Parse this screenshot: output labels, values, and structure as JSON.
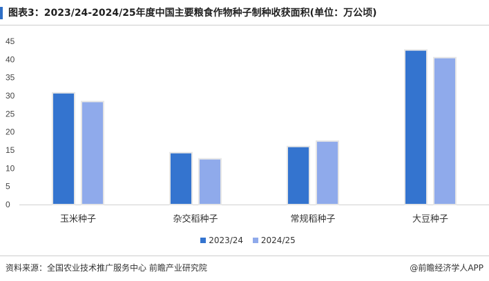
{
  "chart_data": {
    "type": "bar",
    "title": "图表3：2023/24-2024/25年度中国主要粮食作物种子制种收获面积(单位：万公顷)",
    "categories": [
      "玉米种子",
      "杂交稻种子",
      "常规稻种子",
      "大豆种子"
    ],
    "series": [
      {
        "name": "2023/24",
        "color": "#3474cf",
        "values": [
          30.8,
          14.3,
          16.0,
          42.6
        ]
      },
      {
        "name": "2024/25",
        "color": "#8faaeb",
        "values": [
          28.4,
          12.6,
          17.5,
          40.5
        ]
      }
    ],
    "ylim": [
      0,
      45
    ],
    "yticks": [
      0,
      5,
      10,
      15,
      20,
      25,
      30,
      35,
      40,
      45
    ],
    "grid": false,
    "legend": "bottom"
  },
  "footer": {
    "source": "资料来源：全国农业技术推广服务中心 前瞻产业研究院",
    "brand": "@前瞻经济学人APP"
  }
}
